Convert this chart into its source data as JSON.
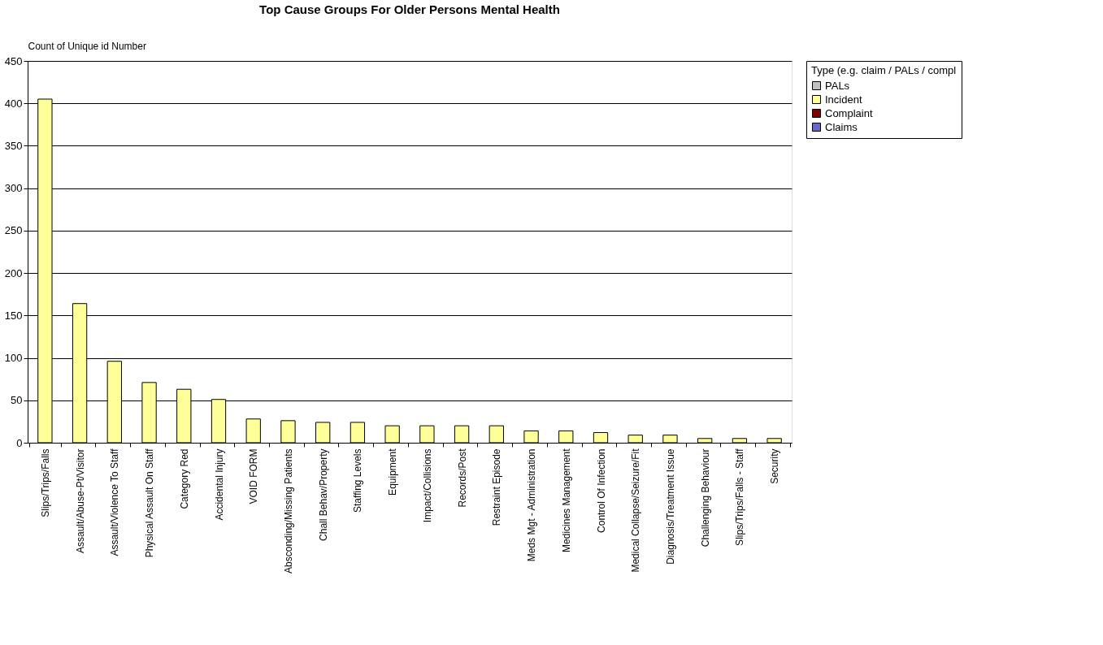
{
  "chart_data": {
    "type": "bar",
    "title": "Top Cause Groups For Older Persons Mental Health",
    "ylabel": "Count of Unique id Number",
    "legend_title": "Type (e.g. claim / PALs / compl",
    "categories": [
      "Slips/Trips/Falls",
      "Assault/Abuse-Pt/Visitor",
      "Assault/Violence To Staff",
      "Physical Assault On Staff",
      "Category Red",
      "Accidental Injury",
      "VOID FORM",
      "Absconding/Missing Patients",
      "Chall Behav/Property",
      "Staffing Levels",
      "Equipment",
      "Impact/Collisions",
      "Records/Post",
      "Restraint Episode",
      "Meds Mgt - Administration",
      "Medicines Management",
      "Control Of Infection",
      "Medical Collapse/Seizure/Fit",
      "Diagnosis/Treatment Issue",
      "Challenging Behaviour",
      "Slips/Trips/Falls - Staff",
      "Security"
    ],
    "series": [
      {
        "name": "PALs",
        "color": "#c0c0c0",
        "values": [
          null,
          null,
          null,
          null,
          null,
          null,
          null,
          null,
          null,
          null,
          null,
          null,
          null,
          null,
          null,
          null,
          null,
          null,
          null,
          null,
          null,
          null
        ]
      },
      {
        "name": "Incident",
        "color": "#ffff99",
        "values": [
          405,
          164,
          96,
          71,
          63,
          51,
          28,
          26,
          24,
          24,
          20,
          20,
          20,
          20,
          14,
          14,
          12,
          9,
          9,
          5,
          5,
          5
        ]
      },
      {
        "name": "Complaint",
        "color": "#800000",
        "values": [
          null,
          null,
          null,
          null,
          null,
          null,
          null,
          null,
          null,
          null,
          null,
          null,
          null,
          null,
          null,
          null,
          null,
          null,
          null,
          null,
          null,
          null
        ]
      },
      {
        "name": "Claims",
        "color": "#6666cc",
        "values": [
          null,
          null,
          null,
          null,
          null,
          null,
          null,
          null,
          null,
          null,
          null,
          null,
          null,
          null,
          null,
          null,
          null,
          null,
          null,
          null,
          null,
          null
        ]
      }
    ],
    "ylim": [
      0,
      450
    ],
    "yticks": [
      0,
      50,
      100,
      150,
      200,
      250,
      300,
      350,
      400,
      450
    ],
    "grid": "y",
    "legend": "right"
  }
}
